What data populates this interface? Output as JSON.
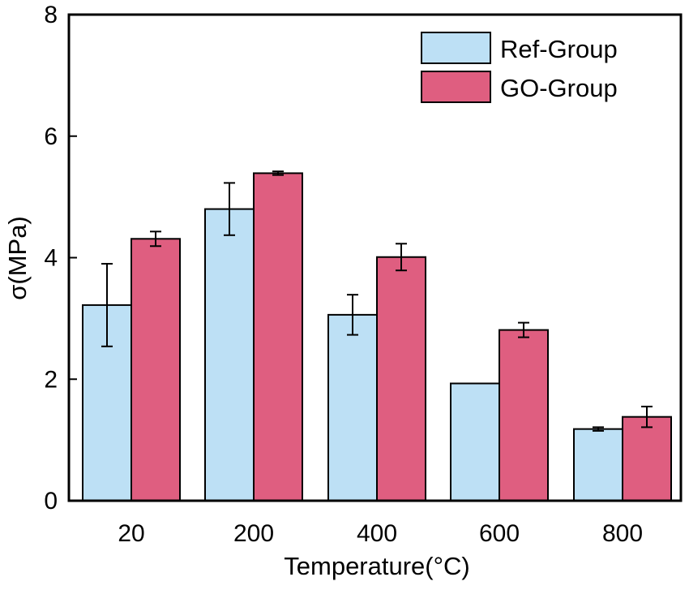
{
  "chart_data": {
    "type": "bar",
    "title": "",
    "xlabel": "Temperature(°C)",
    "ylabel": "σ(MPa)",
    "categories": [
      "20",
      "200",
      "400",
      "600",
      "800"
    ],
    "ylim": [
      0,
      8
    ],
    "yticks": [
      "0",
      "2",
      "4",
      "6",
      "8"
    ],
    "grid": false,
    "legend_position": "top-right",
    "series": [
      {
        "name": "Ref-Group",
        "color": "#bde0f5",
        "values": [
          3.22,
          4.8,
          3.06,
          1.93,
          1.18
        ],
        "errors": [
          0.68,
          0.43,
          0.33,
          0.0,
          0.03
        ]
      },
      {
        "name": "GO-Group",
        "color": "#df5e80",
        "values": [
          4.31,
          5.39,
          4.01,
          2.81,
          1.38
        ],
        "errors": [
          0.12,
          0.03,
          0.22,
          0.12,
          0.17
        ]
      }
    ]
  }
}
